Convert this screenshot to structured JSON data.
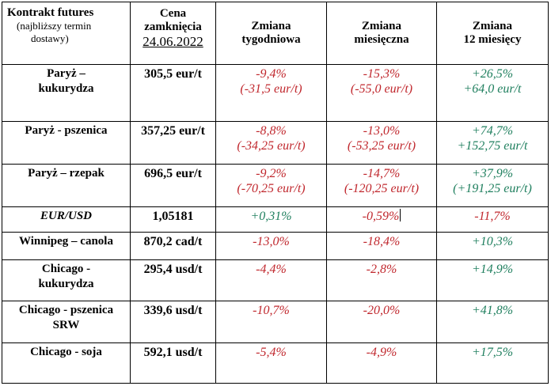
{
  "headers": {
    "col1_title": "Kontrakt futures",
    "col1_subtitle_line1": "(najbliższy termin",
    "col1_subtitle_line2": "dostawy)",
    "col2_line1": "Cena",
    "col2_line2": "zamknięcia",
    "col2_date": "24.06.2022",
    "col3_line1": "Zmiana",
    "col3_line2": "tygodniowa",
    "col4_line1": "Zmiana",
    "col4_line2": "miesięczna",
    "col5_line1": "Zmiana",
    "col5_line2": "12 miesięcy"
  },
  "rows": [
    {
      "name1": "Paryż –",
      "name2": "kukurydza",
      "price": "305,5 eur/t",
      "w1": "-9,4%",
      "w2": "(-31,5 eur/t)",
      "m1": "-15,3%",
      "m2": "(-55,0 eur/t)",
      "y1": "+26,5%",
      "y2": "+64,0 eur/t"
    },
    {
      "name1": "Paryż - pszenica",
      "name2": "",
      "price": "357,25 eur/t",
      "w1": "-8,8%",
      "w2": "(-34,25 eur/t)",
      "m1": "-13,0%",
      "m2": "(-53,25 eur/t)",
      "y1": "+74,7%",
      "y2": "+152,75 eur/t"
    },
    {
      "name1": "Paryż – rzepak",
      "name2": "",
      "price": "696,5 eur/t",
      "w1": "-9,2%",
      "w2": "(-70,25 eur/t)",
      "m1": "-14,7%",
      "m2": "(-120,25 eur/t)",
      "y1": "+37,9%",
      "y2": "(+191,25 eur/t)"
    },
    {
      "name1": "EUR/USD",
      "name2": "",
      "price": "1,05181",
      "w1": "+0,31%",
      "w2": "",
      "m1": "-0,59%",
      "m2": "",
      "y1": "-11,7%",
      "y2": ""
    },
    {
      "name1": "Winnipeg – canola",
      "name2": "",
      "price": "870,2 cad/t",
      "w1": "-13,0%",
      "w2": "",
      "m1": "-18,4%",
      "m2": "",
      "y1": "+10,3%",
      "y2": ""
    },
    {
      "name1": "Chicago -",
      "name2": "kukurydza",
      "price": "295,4 usd/t",
      "w1": "-4,4%",
      "w2": "",
      "m1": "-2,8%",
      "m2": "",
      "y1": "+14,9%",
      "y2": ""
    },
    {
      "name1": "Chicago - pszenica",
      "name2": "SRW",
      "price": "339,6 usd/t",
      "w1": "-10,7%",
      "w2": "",
      "m1": "-20,0%",
      "m2": "",
      "y1": "+41,8%",
      "y2": ""
    },
    {
      "name1": "Chicago - soja",
      "name2": "",
      "price": "592,1 usd/t",
      "w1": "-5,4%",
      "w2": "",
      "m1": "-4,9%",
      "m2": "",
      "y1": "+17,5%",
      "y2": ""
    }
  ],
  "colors": {
    "negative": "#c0272d",
    "positive": "#1f7f5e"
  }
}
